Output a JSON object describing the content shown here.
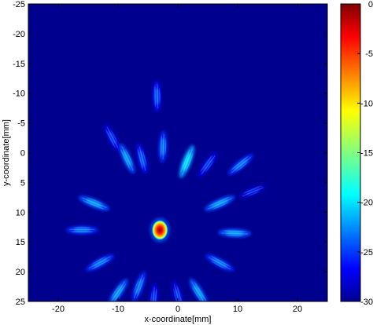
{
  "chart_data": {
    "type": "heatmap",
    "title": "",
    "xlabel": "x-coordinate[mm]",
    "ylabel": "y-coordinate[mm]",
    "xlim": [
      -25,
      25
    ],
    "ylim": [
      -25,
      25
    ],
    "y_axis_reversed": true,
    "x_ticks": [
      -20,
      -10,
      0,
      10,
      20
    ],
    "y_ticks": [
      -25,
      -20,
      -15,
      -10,
      -5,
      0,
      5,
      10,
      15,
      20,
      25
    ],
    "colorbar": {
      "colormap": "jet",
      "range": [
        -30,
        0
      ],
      "ticks": [
        0,
        -5,
        -10,
        -15,
        -20,
        -25,
        -30
      ]
    },
    "background_level": -30,
    "colors": {
      "background": "#00008f",
      "jet": [
        "#00008f",
        "#0000ff",
        "#0080ff",
        "#00ffff",
        "#80ff80",
        "#ffff00",
        "#ff8000",
        "#ff0000",
        "#800000"
      ]
    },
    "peak": {
      "x": -3,
      "y": 13,
      "value": 0
    },
    "sidelobes": [
      {
        "x": -3.5,
        "y": -9.5,
        "value": -26
      },
      {
        "x": -11,
        "y": -2.5,
        "value": -27
      },
      {
        "x": -8.5,
        "y": 1,
        "value": -24
      },
      {
        "x": -6,
        "y": 1,
        "value": -26
      },
      {
        "x": 1.5,
        "y": 1.5,
        "value": -22
      },
      {
        "x": -2.5,
        "y": -1,
        "value": -25
      },
      {
        "x": 5,
        "y": 2,
        "value": -27
      },
      {
        "x": 10.5,
        "y": 2,
        "value": -25
      },
      {
        "x": -14,
        "y": 8.5,
        "value": -24
      },
      {
        "x": 7,
        "y": 8.5,
        "value": -24
      },
      {
        "x": 12.5,
        "y": 6.5,
        "value": -28
      },
      {
        "x": -16,
        "y": 13,
        "value": -25
      },
      {
        "x": 9.5,
        "y": 13.5,
        "value": -24
      },
      {
        "x": -13,
        "y": 18.5,
        "value": -25
      },
      {
        "x": 7,
        "y": 18.5,
        "value": -25
      },
      {
        "x": -10,
        "y": 23.5,
        "value": -24
      },
      {
        "x": -6.5,
        "y": 22.5,
        "value": -25
      },
      {
        "x": -4,
        "y": 24.5,
        "value": -27
      },
      {
        "x": 0,
        "y": 24,
        "value": -27
      },
      {
        "x": 3.5,
        "y": 23.5,
        "value": -24
      }
    ]
  }
}
